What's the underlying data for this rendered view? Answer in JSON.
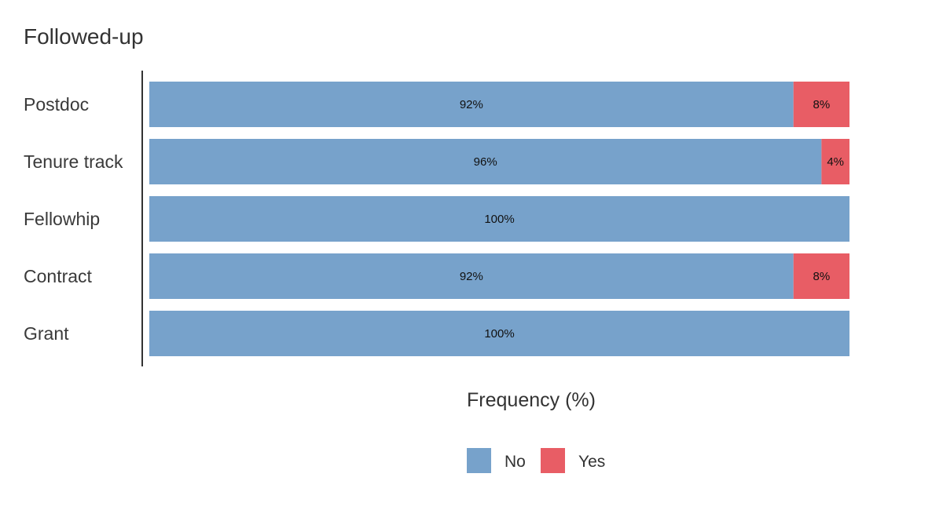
{
  "chart_data": {
    "type": "bar",
    "orientation": "horizontal",
    "stacked": true,
    "title": "Followed-up",
    "xlabel": "Frequency (%)",
    "ylabel": "",
    "xlim": [
      0,
      100
    ],
    "grid": false,
    "legend_position": "bottom",
    "categories": [
      "Postdoc",
      "Tenure track",
      "Fellowhip",
      "Contract",
      "Grant"
    ],
    "series": [
      {
        "name": "No",
        "color": "#77a2cb",
        "values": [
          92,
          96,
          100,
          92,
          100
        ],
        "labels": [
          "92%",
          "96%",
          "100%",
          "92%",
          "100%"
        ]
      },
      {
        "name": "Yes",
        "color": "#e85d65",
        "values": [
          8,
          4,
          0,
          8,
          0
        ],
        "labels": [
          "8%",
          "4%",
          "",
          "8%",
          ""
        ]
      }
    ]
  }
}
